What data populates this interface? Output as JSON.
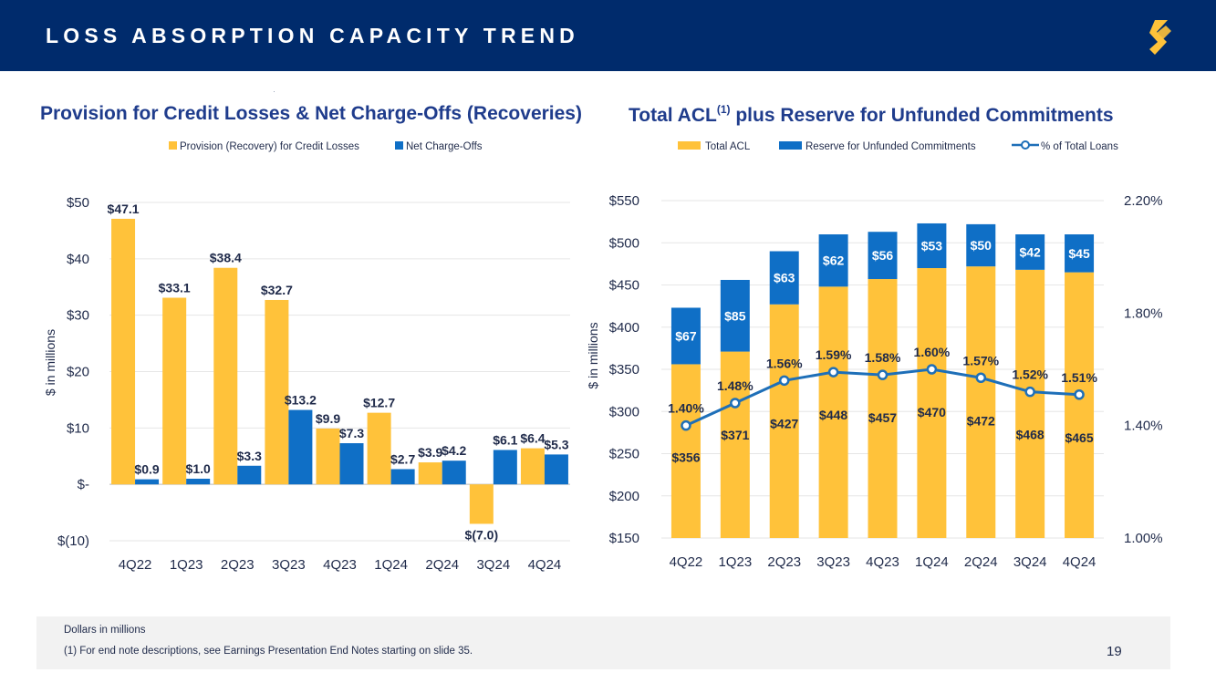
{
  "header": {
    "title": "LOSS ABSORPTION CAPACITY TREND",
    "logo": "s-logo-icon"
  },
  "colors": {
    "gold": "#ffc23a",
    "blue": "#0f6fc6",
    "navy": "#002b6c",
    "title": "#1f3c8c",
    "label": "#1f2a4a",
    "grid": "#e6e6e6"
  },
  "chart_data": [
    {
      "type": "bar",
      "title": "Provision for Credit Losses & Net Charge-Offs (Recoveries)",
      "ylabel": "$ in millions",
      "ylim": [
        -10,
        50
      ],
      "yticks": [
        -10,
        0,
        10,
        20,
        30,
        40,
        50
      ],
      "ytick_labels": [
        "$(10)",
        "$-",
        "$10",
        "$20",
        "$30",
        "$40",
        "$50"
      ],
      "categories": [
        "4Q22",
        "1Q23",
        "2Q23",
        "3Q23",
        "4Q23",
        "1Q24",
        "2Q24",
        "3Q24",
        "4Q24"
      ],
      "series": [
        {
          "name": "Provision (Recovery) for Credit Losses",
          "color": "#ffc23a",
          "values": [
            47.1,
            33.1,
            38.4,
            32.7,
            9.9,
            12.7,
            3.9,
            -7.0,
            6.4
          ],
          "labels": [
            "$47.1",
            "$33.1",
            "$38.4",
            "$32.7",
            "$9.9",
            "$12.7",
            "$3.9",
            "$(7.0)",
            "$6.4"
          ]
        },
        {
          "name": "Net Charge-Offs",
          "color": "#0f6fc6",
          "values": [
            0.9,
            1.0,
            3.3,
            13.2,
            7.3,
            2.7,
            4.2,
            6.1,
            5.3
          ],
          "labels": [
            "$0.9",
            "$1.0",
            "$3.3",
            "$13.2",
            "$7.3",
            "$2.7",
            "$4.2",
            "$6.1",
            "$5.3"
          ]
        }
      ],
      "legend": "top-center",
      "grid": true
    },
    {
      "type": "stacked-bar-line",
      "title": "Total ACL",
      "title_sup": "(1)",
      "title_rest": " plus Reserve for Unfunded Commitments",
      "ylabel": "$ in millions",
      "ylim": [
        150,
        550
      ],
      "yticks": [
        150,
        200,
        250,
        300,
        350,
        400,
        450,
        500,
        550
      ],
      "ytick_labels": [
        "$150",
        "$200",
        "$250",
        "$300",
        "$350",
        "$400",
        "$450",
        "$500",
        "$550"
      ],
      "y2lim": [
        1.0,
        2.2
      ],
      "y2ticks": [
        1.0,
        1.4,
        1.8,
        2.2
      ],
      "y2tick_labels": [
        "1.00%",
        "1.40%",
        "1.80%",
        "2.20%"
      ],
      "categories": [
        "4Q22",
        "1Q23",
        "2Q23",
        "3Q23",
        "4Q23",
        "1Q24",
        "2Q24",
        "3Q24",
        "4Q24"
      ],
      "series": [
        {
          "name": "Total ACL",
          "color": "#ffc23a",
          "values": [
            356,
            371,
            427,
            448,
            457,
            470,
            472,
            468,
            465
          ],
          "labels": [
            "$356",
            "$371",
            "$427",
            "$448",
            "$457",
            "$470",
            "$472",
            "$468",
            "$465"
          ]
        },
        {
          "name": "Reserve for Unfunded Commitments",
          "color": "#0f6fc6",
          "values": [
            67,
            85,
            63,
            62,
            56,
            53,
            50,
            42,
            45
          ],
          "labels": [
            "$67",
            "$85",
            "$63",
            "$62",
            "$56",
            "$53",
            "$50",
            "$42",
            "$45"
          ]
        },
        {
          "name": "% of Total Loans",
          "color": "#1e6fb8",
          "axis": "right",
          "values": [
            1.4,
            1.48,
            1.56,
            1.59,
            1.58,
            1.6,
            1.57,
            1.52,
            1.51
          ],
          "labels": [
            "1.40%",
            "1.48%",
            "1.56%",
            "1.59%",
            "1.58%",
            "1.60%",
            "1.57%",
            "1.52%",
            "1.51%"
          ]
        }
      ],
      "legend": "top-center",
      "grid": true
    }
  ],
  "footer": {
    "note1": "Dollars in millions",
    "note2": "(1)   For end note descriptions, see Earnings Presentation End Notes starting on slide 35."
  },
  "page_number": "19"
}
